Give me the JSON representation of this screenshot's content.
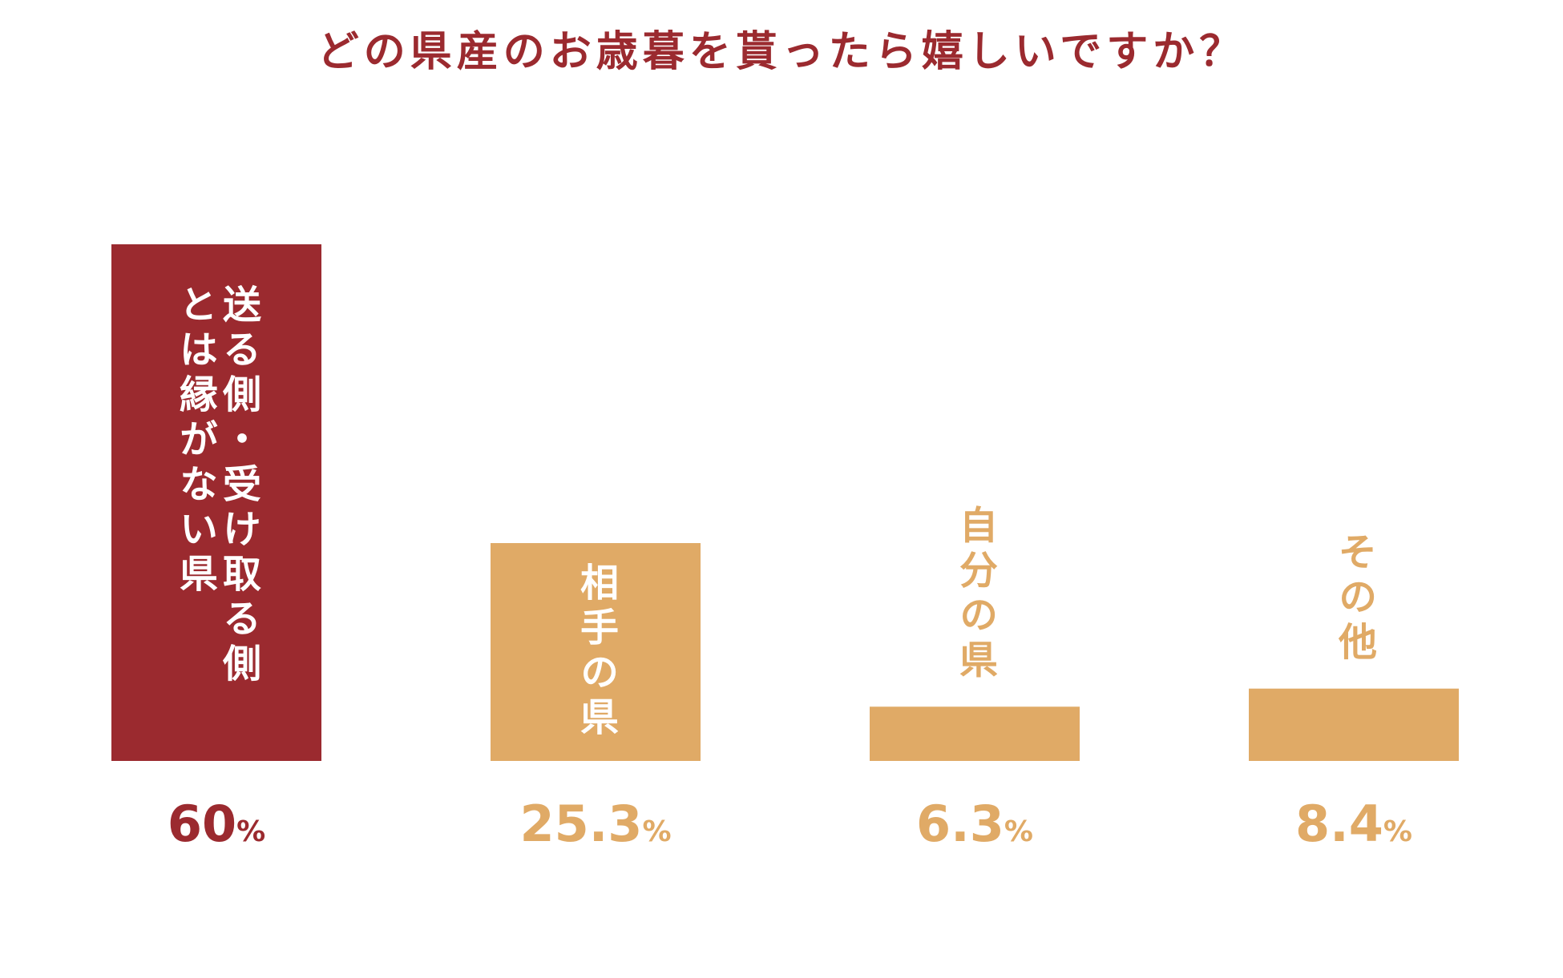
{
  "chart_data": {
    "type": "bar",
    "title": "どの県産のお歳暮を貰ったら嬉しいですか？",
    "categories": [
      "送る側・受け取る側とは縁がない県",
      "相手の県",
      "自分の県",
      "その他"
    ],
    "category_lines": [
      [
        "送る側・受け取る側",
        "とは縁がない県"
      ],
      [
        "相手の県"
      ],
      [
        "自分の県"
      ],
      [
        "その他"
      ]
    ],
    "label_position": [
      "inside",
      "inside",
      "above",
      "above"
    ],
    "values": [
      60,
      25.3,
      6.3,
      8.4
    ],
    "value_labels": [
      "60",
      "25.3",
      "6.3",
      "8.4"
    ],
    "unit": "%",
    "ylim": [
      0,
      60
    ],
    "grid": false,
    "xlabel": "",
    "ylabel": "",
    "colors": {
      "highlight": "#9b2a2f",
      "other": "#e0aa66",
      "inside_label": "#ffffff",
      "title": "#9b2a2f"
    },
    "bar_colors": [
      "#9b2a2f",
      "#e0aa66",
      "#e0aa66",
      "#e0aa66"
    ]
  }
}
